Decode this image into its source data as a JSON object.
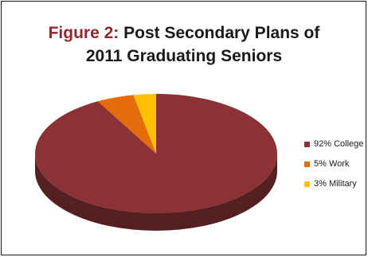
{
  "title": {
    "figure_label": "Figure 2:",
    "line1_rest": " Post Secondary Plans of",
    "line2": "2011 Graduating Seniors"
  },
  "legend": [
    "92% College",
    "5% Work",
    "3% Military"
  ],
  "colors": {
    "title_accent": "#8b2a32",
    "College": "#8b3236",
    "Work": "#e46c0a",
    "Military": "#ffc000"
  },
  "chart_data": {
    "type": "pie",
    "title": "Figure 2: Post Secondary Plans of 2011 Graduating Seniors",
    "three_d": true,
    "legend_position": "right",
    "slices": [
      {
        "label": "College",
        "value": 92,
        "color": "#8b3236"
      },
      {
        "label": "Work",
        "value": 5,
        "color": "#e46c0a"
      },
      {
        "label": "Military",
        "value": 3,
        "color": "#ffc000"
      }
    ]
  }
}
